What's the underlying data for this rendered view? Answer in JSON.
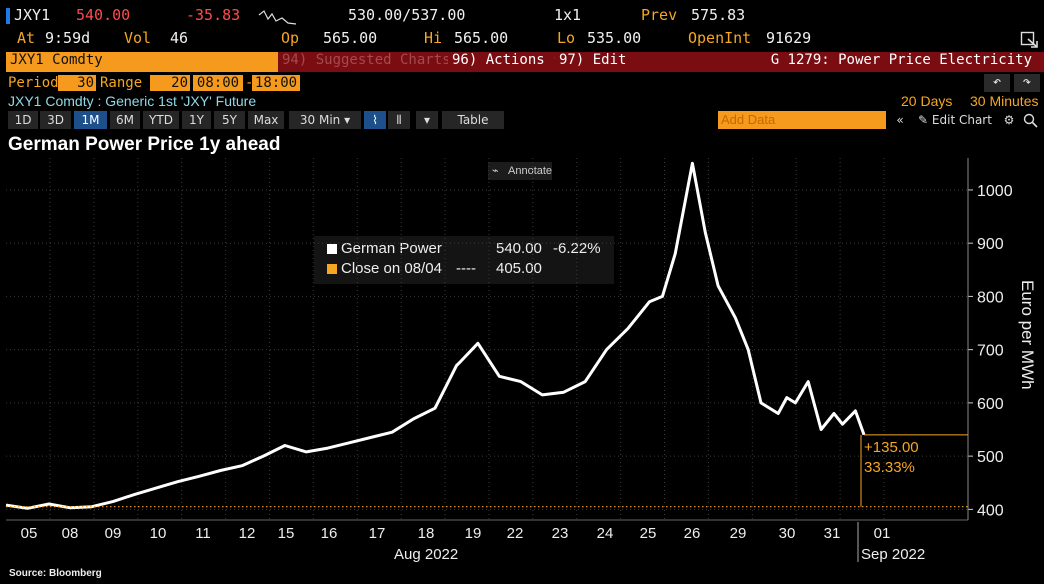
{
  "header": {
    "ticker": "JXY1",
    "last": "540.00",
    "change": "-35.83",
    "bid_ask": "530.00/537.00",
    "size": "1x1",
    "prev_label": "Prev",
    "prev_value": "575.83",
    "at_label": "At",
    "at_value": "9:59d",
    "vol_label": "Vol",
    "vol_value": "46",
    "op_label": "Op",
    "op_value": "565.00",
    "hi_label": "Hi",
    "hi_value": "565.00",
    "lo_label": "Lo",
    "lo_value": "535.00",
    "oi_label": "OpenInt",
    "oi_value": "91629"
  },
  "bar": {
    "security": "JXY1 Comdty",
    "suggested": "94) Suggested Charts",
    "actions": "96) Actions ▾",
    "edit": "97) Edit ▾",
    "function_title": "G 1279: Power Price Electricity"
  },
  "settings": {
    "period_label": "Period",
    "period_value": "30",
    "range_label": "Range",
    "range_value": "20",
    "time_from": "08:00",
    "dash": "-",
    "time_to": "18:00",
    "undo": "↶",
    "redo": "↷",
    "description": "JXY1 Comdty : Generic 1st 'JXY' Future",
    "days": "20 Days",
    "interval": "30 Minutes"
  },
  "toolbar": {
    "ranges": [
      "1D",
      "3D",
      "1M",
      "6M",
      "YTD",
      "1Y",
      "5Y",
      "Max"
    ],
    "active_range": "1M",
    "interval": "30 Min ▾",
    "chart_icon": "⌇",
    "bars_icon": "⫴",
    "dropdown": "▾",
    "table": "Table",
    "add_data_placeholder": "Add Data",
    "collapse": "«",
    "edit_chart": "✎ Edit Chart",
    "settings_icon": "⚙"
  },
  "annotate": "Annotate",
  "tooltip": {
    "series_label": "German Power",
    "series_value": "540.00",
    "series_change": "-6.22%",
    "close_label": "Close on 08/04",
    "close_dashes": "----",
    "close_value": "405.00"
  },
  "source": "Source: Bloomberg",
  "colors": {
    "accent": "#f5a623",
    "line": "#ffffff",
    "background": "#000000",
    "negative": "#ff4b4b",
    "banner": "#7a0d12"
  },
  "chart_data": {
    "type": "line",
    "title": "German Power Price 1y ahead",
    "ylabel": "Euro per MWh",
    "xlabel": "",
    "ylim": [
      380,
      1060
    ],
    "yticks": [
      400,
      500,
      600,
      700,
      800,
      900,
      1000
    ],
    "x_ticks": [
      "05",
      "08",
      "09",
      "10",
      "11",
      "12",
      "15",
      "16",
      "17",
      "18",
      "19",
      "22",
      "23",
      "24",
      "25",
      "26",
      "29",
      "30",
      "31",
      "01"
    ],
    "x_month_labels": [
      "Aug 2022",
      "Sep 2022"
    ],
    "reference_line": {
      "label": "Close on 08/04",
      "value": 405
    },
    "change_annotation": [
      "+135.00",
      "33.33%"
    ],
    "series": [
      {
        "name": "German Power",
        "x": [
          0,
          0.5,
          1,
          1.5,
          2,
          2.5,
          3,
          3.5,
          4,
          4.5,
          5,
          5.5,
          6,
          6.5,
          7,
          7.5,
          8,
          8.5,
          9,
          9.5,
          10,
          10.5,
          10.6,
          11,
          11.5,
          12,
          12.5,
          13,
          13.5,
          14,
          14.5,
          15,
          15.3,
          15.6,
          16,
          16.3,
          16.6,
          17,
          17.3,
          17.6,
          18,
          18.2,
          18.4,
          18.7,
          19,
          19.3,
          19.5,
          19.8,
          20
        ],
        "y": [
          408,
          402,
          410,
          403,
          405,
          415,
          428,
          440,
          452,
          462,
          473,
          482,
          500,
          520,
          508,
          515,
          525,
          535,
          545,
          570,
          590,
          670,
          678,
          712,
          650,
          640,
          615,
          620,
          640,
          700,
          740,
          790,
          800,
          880,
          1050,
          920,
          820,
          760,
          700,
          600,
          580,
          610,
          600,
          640,
          550,
          580,
          560,
          585,
          540
        ]
      }
    ]
  }
}
